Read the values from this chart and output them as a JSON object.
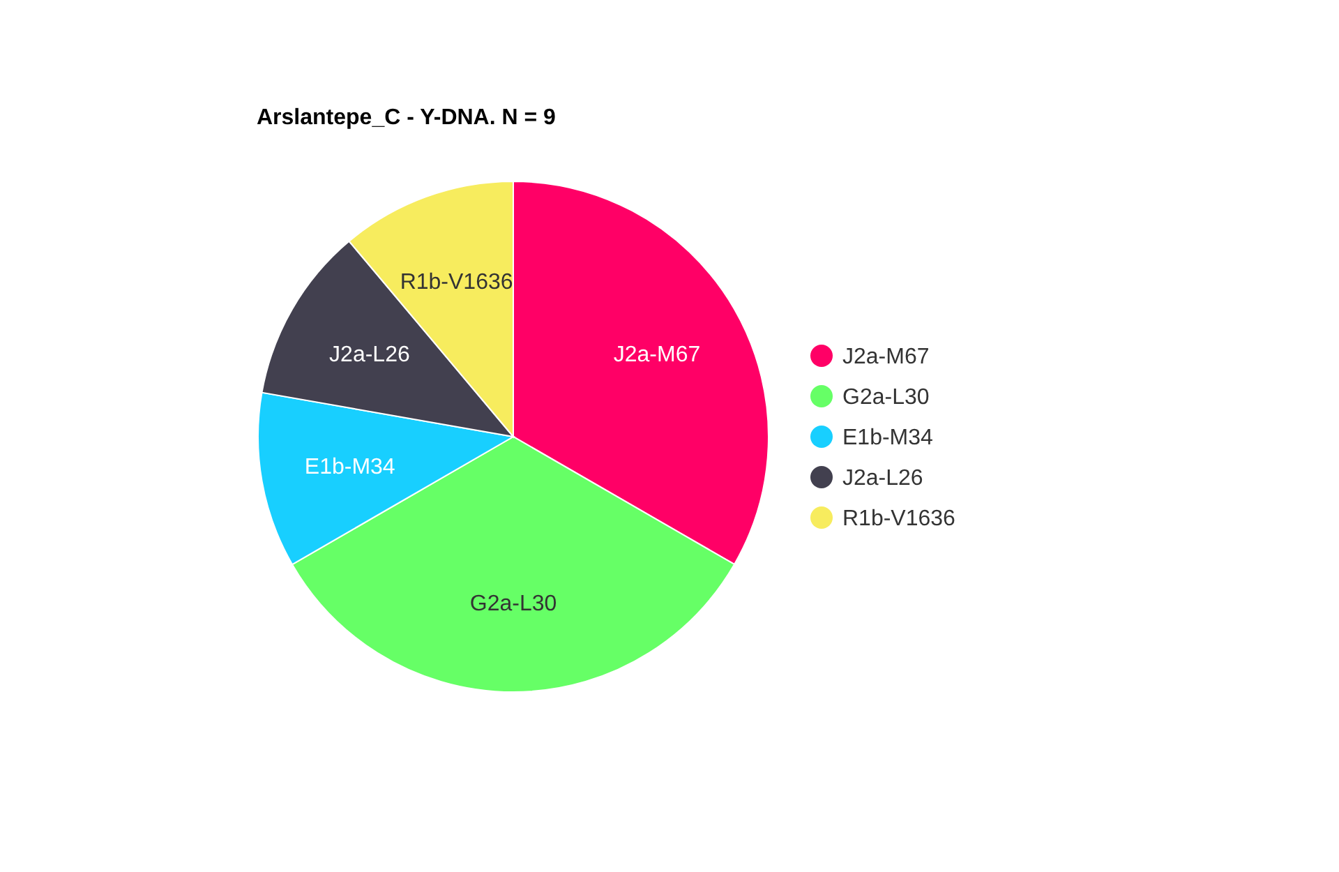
{
  "chart_data": {
    "type": "pie",
    "title": "Arslantepe_C - Y-DNA. N = 9",
    "categories": [
      "J2a-M67",
      "G2a-L30",
      "E1b-M34",
      "J2a-L26",
      "R1b-V1636"
    ],
    "values": [
      33.33,
      33.33,
      11.11,
      11.11,
      11.12
    ],
    "colors": [
      "#ff0066",
      "#66ff66",
      "#18cfff",
      "#42404f",
      "#f7ec5e"
    ],
    "legend": "right"
  }
}
